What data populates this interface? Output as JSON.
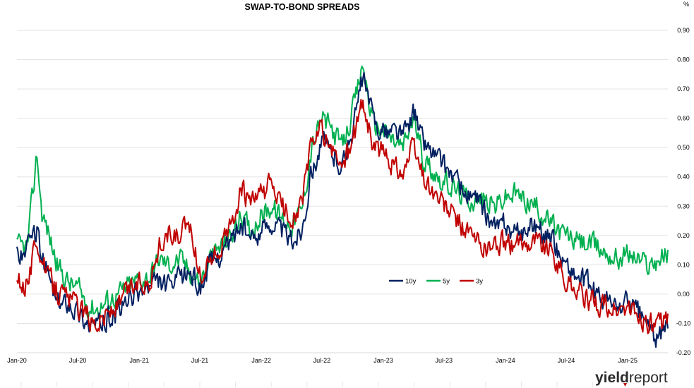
{
  "chart_data": {
    "type": "line",
    "title": "SWAP-TO-BOND SPREADS",
    "ylabel": "%",
    "xlabel": "",
    "ylim": [
      -0.2,
      0.9
    ],
    "xlim": [
      "2020-01-01",
      "2025-05-01"
    ],
    "yticks": [
      "-0.20",
      "-0.10",
      "0.00",
      "0.10",
      "0.20",
      "0.30",
      "0.40",
      "0.50",
      "0.60",
      "0.70",
      "0.80",
      "0.90"
    ],
    "xticks": [
      {
        "date": "2020-01-01",
        "label": "Jan-20"
      },
      {
        "date": "2020-07-01",
        "label": "Jul-20"
      },
      {
        "date": "2021-01-01",
        "label": "Jan-21"
      },
      {
        "date": "2021-07-01",
        "label": "Jul-21"
      },
      {
        "date": "2022-01-01",
        "label": "Jan-22"
      },
      {
        "date": "2022-07-01",
        "label": "Jul-22"
      },
      {
        "date": "2023-01-01",
        "label": "Jan-23"
      },
      {
        "date": "2023-07-01",
        "label": "Jul-23"
      },
      {
        "date": "2024-01-01",
        "label": "Jan-24"
      },
      {
        "date": "2024-07-01",
        "label": "Jul-24"
      },
      {
        "date": "2025-01-01",
        "label": "Jan-25"
      }
    ],
    "grid": "horizontal",
    "legend_position": "right-center",
    "series": [
      {
        "name": "10y",
        "color": "#002060",
        "points": [
          [
            "2020-01-01",
            0.14
          ],
          [
            "2020-02-01",
            0.15
          ],
          [
            "2020-03-01",
            0.22
          ],
          [
            "2020-03-15",
            0.12
          ],
          [
            "2020-04-01",
            0.08
          ],
          [
            "2020-05-01",
            -0.04
          ],
          [
            "2020-06-01",
            -0.02
          ],
          [
            "2020-07-01",
            -0.06
          ],
          [
            "2020-08-01",
            -0.1
          ],
          [
            "2020-09-01",
            -0.11
          ],
          [
            "2020-10-01",
            -0.08
          ],
          [
            "2020-11-01",
            -0.06
          ],
          [
            "2020-12-01",
            -0.02
          ],
          [
            "2021-01-01",
            0.01
          ],
          [
            "2021-02-01",
            0.02
          ],
          [
            "2021-03-01",
            0.04
          ],
          [
            "2021-04-01",
            0.02
          ],
          [
            "2021-05-01",
            0.05
          ],
          [
            "2021-06-01",
            0.08
          ],
          [
            "2021-07-01",
            0.02
          ],
          [
            "2021-08-01",
            0.1
          ],
          [
            "2021-09-01",
            0.14
          ],
          [
            "2021-10-01",
            0.18
          ],
          [
            "2021-11-01",
            0.24
          ],
          [
            "2021-12-01",
            0.18
          ],
          [
            "2022-01-01",
            0.22
          ],
          [
            "2022-02-01",
            0.25
          ],
          [
            "2022-03-01",
            0.22
          ],
          [
            "2022-04-01",
            0.18
          ],
          [
            "2022-05-01",
            0.22
          ],
          [
            "2022-06-01",
            0.42
          ],
          [
            "2022-07-01",
            0.52
          ],
          [
            "2022-08-01",
            0.48
          ],
          [
            "2022-09-01",
            0.44
          ],
          [
            "2022-10-01",
            0.56
          ],
          [
            "2022-11-01",
            0.74
          ],
          [
            "2022-12-01",
            0.6
          ],
          [
            "2023-01-01",
            0.55
          ],
          [
            "2023-02-01",
            0.56
          ],
          [
            "2023-03-01",
            0.54
          ],
          [
            "2023-04-01",
            0.62
          ],
          [
            "2023-05-01",
            0.52
          ],
          [
            "2023-06-01",
            0.48
          ],
          [
            "2023-07-01",
            0.44
          ],
          [
            "2023-08-01",
            0.4
          ],
          [
            "2023-09-01",
            0.34
          ],
          [
            "2023-10-01",
            0.32
          ],
          [
            "2023-11-01",
            0.28
          ],
          [
            "2023-12-01",
            0.22
          ],
          [
            "2024-01-01",
            0.24
          ],
          [
            "2024-02-01",
            0.2
          ],
          [
            "2024-03-01",
            0.22
          ],
          [
            "2024-04-01",
            0.24
          ],
          [
            "2024-05-01",
            0.2
          ],
          [
            "2024-06-01",
            0.16
          ],
          [
            "2024-07-01",
            0.1
          ],
          [
            "2024-08-01",
            0.06
          ],
          [
            "2024-09-01",
            0.04
          ],
          [
            "2024-10-01",
            0.0
          ],
          [
            "2024-11-01",
            -0.02
          ],
          [
            "2024-12-01",
            -0.05
          ],
          [
            "2025-01-01",
            -0.02
          ],
          [
            "2025-02-01",
            -0.06
          ],
          [
            "2025-03-01",
            -0.1
          ],
          [
            "2025-04-01",
            -0.16
          ],
          [
            "2025-05-01",
            -0.1
          ]
        ]
      },
      {
        "name": "5y",
        "color": "#00b050",
        "points": [
          [
            "2020-01-01",
            0.16
          ],
          [
            "2020-02-01",
            0.16
          ],
          [
            "2020-03-01",
            0.48
          ],
          [
            "2020-03-15",
            0.28
          ],
          [
            "2020-04-01",
            0.22
          ],
          [
            "2020-05-01",
            0.1
          ],
          [
            "2020-06-01",
            0.04
          ],
          [
            "2020-07-01",
            0.02
          ],
          [
            "2020-08-01",
            -0.04
          ],
          [
            "2020-09-01",
            -0.05
          ],
          [
            "2020-10-01",
            -0.02
          ],
          [
            "2020-11-01",
            0.0
          ],
          [
            "2020-12-01",
            0.03
          ],
          [
            "2021-01-01",
            0.05
          ],
          [
            "2021-02-01",
            0.06
          ],
          [
            "2021-03-01",
            0.12
          ],
          [
            "2021-04-01",
            0.1
          ],
          [
            "2021-05-01",
            0.12
          ],
          [
            "2021-06-01",
            0.08
          ],
          [
            "2021-07-01",
            0.04
          ],
          [
            "2021-08-01",
            0.12
          ],
          [
            "2021-09-01",
            0.16
          ],
          [
            "2021-10-01",
            0.2
          ],
          [
            "2021-11-01",
            0.26
          ],
          [
            "2021-12-01",
            0.22
          ],
          [
            "2022-01-01",
            0.27
          ],
          [
            "2022-02-01",
            0.3
          ],
          [
            "2022-03-01",
            0.26
          ],
          [
            "2022-04-01",
            0.24
          ],
          [
            "2022-05-01",
            0.28
          ],
          [
            "2022-06-01",
            0.5
          ],
          [
            "2022-07-01",
            0.6
          ],
          [
            "2022-08-01",
            0.56
          ],
          [
            "2022-09-01",
            0.5
          ],
          [
            "2022-10-01",
            0.62
          ],
          [
            "2022-11-01",
            0.78
          ],
          [
            "2022-12-01",
            0.58
          ],
          [
            "2023-01-01",
            0.56
          ],
          [
            "2023-02-01",
            0.52
          ],
          [
            "2023-03-01",
            0.5
          ],
          [
            "2023-04-01",
            0.6
          ],
          [
            "2023-05-01",
            0.46
          ],
          [
            "2023-06-01",
            0.42
          ],
          [
            "2023-07-01",
            0.38
          ],
          [
            "2023-08-01",
            0.36
          ],
          [
            "2023-09-01",
            0.33
          ],
          [
            "2023-10-01",
            0.32
          ],
          [
            "2023-11-01",
            0.32
          ],
          [
            "2023-12-01",
            0.3
          ],
          [
            "2024-01-01",
            0.33
          ],
          [
            "2024-02-01",
            0.34
          ],
          [
            "2024-03-01",
            0.32
          ],
          [
            "2024-04-01",
            0.3
          ],
          [
            "2024-05-01",
            0.26
          ],
          [
            "2024-06-01",
            0.22
          ],
          [
            "2024-07-01",
            0.2
          ],
          [
            "2024-08-01",
            0.18
          ],
          [
            "2024-09-01",
            0.17
          ],
          [
            "2024-10-01",
            0.16
          ],
          [
            "2024-11-01",
            0.14
          ],
          [
            "2024-12-01",
            0.12
          ],
          [
            "2025-01-01",
            0.14
          ],
          [
            "2025-02-01",
            0.12
          ],
          [
            "2025-03-01",
            0.1
          ],
          [
            "2025-04-01",
            0.12
          ],
          [
            "2025-05-01",
            0.14
          ]
        ]
      },
      {
        "name": "3y",
        "color": "#c00000",
        "points": [
          [
            "2020-01-01",
            0.04
          ],
          [
            "2020-02-01",
            0.03
          ],
          [
            "2020-03-01",
            0.2
          ],
          [
            "2020-03-15",
            0.12
          ],
          [
            "2020-04-01",
            0.06
          ],
          [
            "2020-05-01",
            0.01
          ],
          [
            "2020-06-01",
            -0.01
          ],
          [
            "2020-07-01",
            -0.04
          ],
          [
            "2020-08-01",
            -0.08
          ],
          [
            "2020-09-01",
            -0.09
          ],
          [
            "2020-10-01",
            -0.06
          ],
          [
            "2020-11-01",
            -0.04
          ],
          [
            "2020-12-01",
            0.02
          ],
          [
            "2021-01-01",
            0.04
          ],
          [
            "2021-02-01",
            0.05
          ],
          [
            "2021-03-01",
            0.16
          ],
          [
            "2021-04-01",
            0.2
          ],
          [
            "2021-05-01",
            0.19
          ],
          [
            "2021-06-01",
            0.24
          ],
          [
            "2021-07-01",
            0.06
          ],
          [
            "2021-08-01",
            0.12
          ],
          [
            "2021-09-01",
            0.16
          ],
          [
            "2021-10-01",
            0.22
          ],
          [
            "2021-11-01",
            0.36
          ],
          [
            "2021-12-01",
            0.3
          ],
          [
            "2022-01-01",
            0.34
          ],
          [
            "2022-02-01",
            0.38
          ],
          [
            "2022-03-01",
            0.3
          ],
          [
            "2022-04-01",
            0.26
          ],
          [
            "2022-05-01",
            0.3
          ],
          [
            "2022-06-01",
            0.52
          ],
          [
            "2022-07-01",
            0.56
          ],
          [
            "2022-08-01",
            0.48
          ],
          [
            "2022-09-01",
            0.44
          ],
          [
            "2022-10-01",
            0.52
          ],
          [
            "2022-11-01",
            0.66
          ],
          [
            "2022-12-01",
            0.5
          ],
          [
            "2023-01-01",
            0.48
          ],
          [
            "2023-02-01",
            0.44
          ],
          [
            "2023-03-01",
            0.42
          ],
          [
            "2023-04-01",
            0.5
          ],
          [
            "2023-05-01",
            0.4
          ],
          [
            "2023-06-01",
            0.34
          ],
          [
            "2023-07-01",
            0.3
          ],
          [
            "2023-08-01",
            0.26
          ],
          [
            "2023-09-01",
            0.22
          ],
          [
            "2023-10-01",
            0.18
          ],
          [
            "2023-11-01",
            0.16
          ],
          [
            "2023-12-01",
            0.16
          ],
          [
            "2024-01-01",
            0.18
          ],
          [
            "2024-02-01",
            0.16
          ],
          [
            "2024-03-01",
            0.18
          ],
          [
            "2024-04-01",
            0.19
          ],
          [
            "2024-05-01",
            0.16
          ],
          [
            "2024-06-01",
            0.12
          ],
          [
            "2024-07-01",
            0.04
          ],
          [
            "2024-08-01",
            0.02
          ],
          [
            "2024-09-01",
            -0.02
          ],
          [
            "2024-10-01",
            -0.03
          ],
          [
            "2024-11-01",
            -0.05
          ],
          [
            "2024-12-01",
            -0.06
          ],
          [
            "2025-01-01",
            -0.05
          ],
          [
            "2025-02-01",
            -0.08
          ],
          [
            "2025-03-01",
            -0.1
          ],
          [
            "2025-04-01",
            -0.12
          ],
          [
            "2025-05-01",
            -0.08
          ]
        ]
      }
    ]
  },
  "branding": {
    "logo_part1": "yield",
    "logo_part2": "report"
  }
}
